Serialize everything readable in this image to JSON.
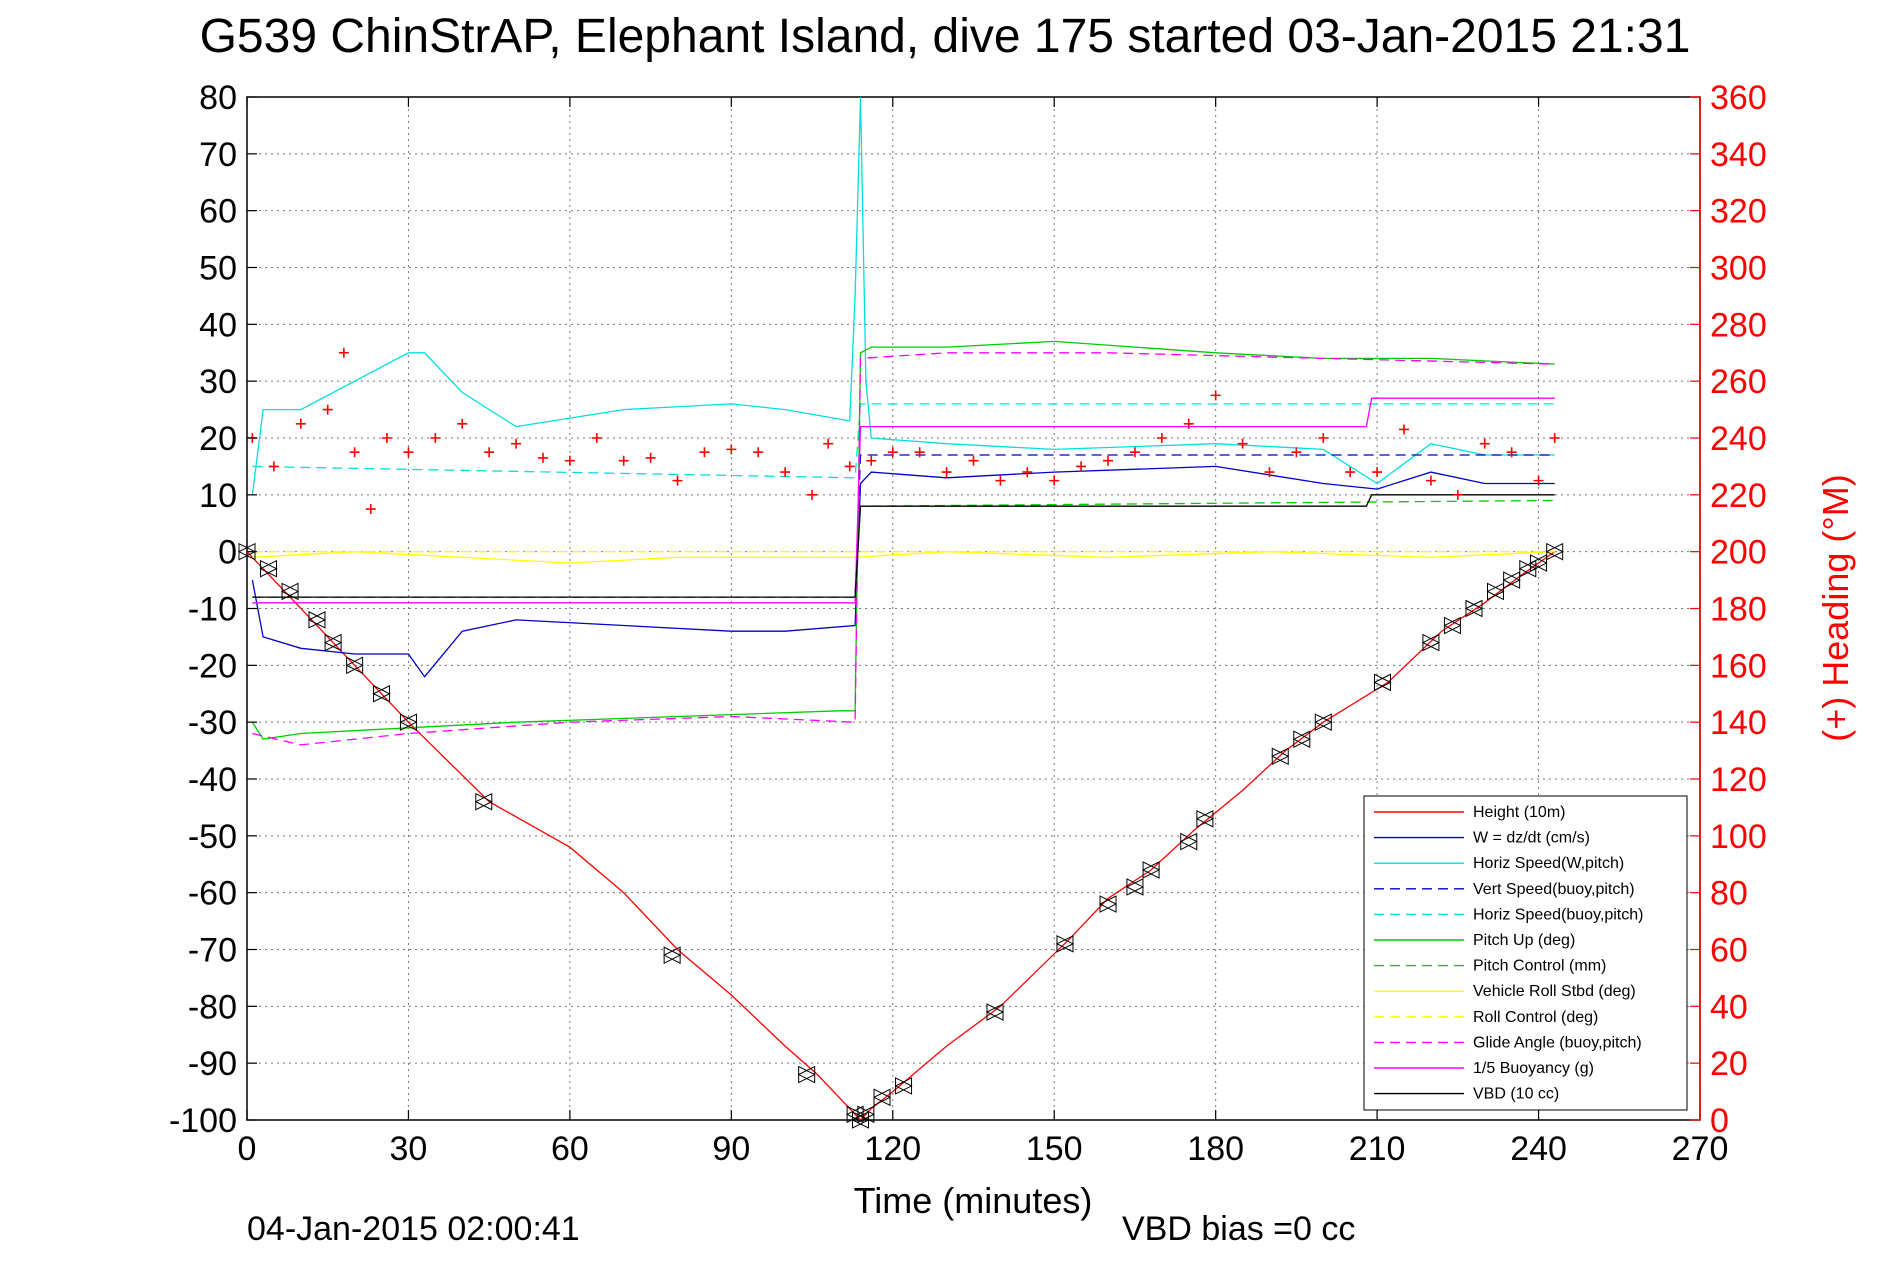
{
  "chart_data": {
    "type": "line",
    "title": "G539 ChinStrAP, Elephant Island, dive 175 started 03-Jan-2015 21:31",
    "xlabel": "Time (minutes)",
    "ylabel_right": "(+) Heading (°M)",
    "xlim": [
      0,
      270
    ],
    "ylim": [
      -100,
      80
    ],
    "ylim_right": [
      0,
      360
    ],
    "x_ticks": [
      "0",
      "30",
      "60",
      "90",
      "120",
      "150",
      "180",
      "210",
      "240",
      "270"
    ],
    "y_ticks": [
      "80",
      "70",
      "60",
      "50",
      "40",
      "30",
      "20",
      "10",
      "0",
      "-10",
      "-20",
      "-30",
      "-40",
      "-50",
      "-60",
      "-70",
      "-80",
      "-90",
      "-100"
    ],
    "y_ticks_right": [
      "360",
      "340",
      "320",
      "300",
      "280",
      "260",
      "240",
      "220",
      "200",
      "180",
      "160",
      "140",
      "120",
      "100",
      "80",
      "60",
      "40",
      "20",
      "0"
    ],
    "grid": true,
    "legend_position": "bottom-right",
    "footer_left": "04-Jan-2015 02:00:41",
    "footer_right": "VBD bias =0 cc",
    "series": [
      {
        "name": "Height (10m)",
        "color": "#ff0000",
        "style": "solid",
        "x": [
          0,
          3,
          8,
          15,
          22,
          30,
          45,
          60,
          70,
          80,
          90,
          100,
          106,
          110,
          114,
          116,
          120,
          130,
          140,
          153,
          160,
          168,
          176,
          185,
          193,
          200,
          212,
          222,
          230,
          237,
          243
        ],
        "y": [
          0,
          -3,
          -8,
          -15,
          -22,
          -30,
          -44,
          -52,
          -60,
          -70,
          -78,
          -87,
          -92,
          -96,
          -100,
          -98,
          -95,
          -87,
          -80,
          -68,
          -61,
          -56,
          -49,
          -42,
          -35,
          -30,
          -23,
          -14,
          -9,
          -4,
          0
        ]
      },
      {
        "name": "W = dz/dt (cm/s)",
        "color": "#0000cc",
        "style": "solid",
        "x": [
          1,
          3,
          10,
          20,
          30,
          33,
          40,
          50,
          70,
          90,
          100,
          113,
          114,
          116,
          130,
          150,
          180,
          200,
          210,
          220,
          230,
          243
        ],
        "y": [
          -5,
          -15,
          -17,
          -18,
          -18,
          -22,
          -14,
          -12,
          -13,
          -14,
          -14,
          -13,
          12,
          14,
          13,
          14,
          15,
          12,
          11,
          14,
          12,
          12
        ]
      },
      {
        "name": "Horiz Speed(W,pitch)",
        "color": "#00e0e0",
        "style": "solid",
        "x": [
          1,
          3,
          10,
          20,
          30,
          33,
          40,
          50,
          70,
          90,
          100,
          112,
          113,
          114,
          115,
          116,
          130,
          150,
          180,
          200,
          210,
          220,
          230,
          243
        ],
        "y": [
          10,
          25,
          25,
          30,
          35,
          35,
          28,
          22,
          25,
          26,
          25,
          23,
          45,
          80,
          30,
          20,
          19,
          18,
          19,
          18,
          12,
          19,
          17,
          17
        ]
      },
      {
        "name": "Vert Speed(buoy,pitch)",
        "color": "#0000cc",
        "style": "dashed",
        "x": [
          1,
          113,
          114,
          243
        ],
        "y": [
          -8,
          -8,
          17,
          17
        ]
      },
      {
        "name": "Horiz Speed(buoy,pitch)",
        "color": "#00e0e0",
        "style": "dashed",
        "x": [
          1,
          113,
          114,
          243
        ],
        "y": [
          15,
          13,
          26,
          26
        ]
      },
      {
        "name": "Pitch Up (deg)",
        "color": "#00cc00",
        "style": "solid",
        "x": [
          1,
          3,
          10,
          30,
          50,
          80,
          110,
          113,
          114,
          116,
          130,
          150,
          180,
          200,
          220,
          243
        ],
        "y": [
          -30,
          -33,
          -32,
          -31,
          -30,
          -29,
          -28,
          -28,
          35,
          36,
          36,
          37,
          35,
          34,
          34,
          33
        ]
      },
      {
        "name": "Pitch Control (mm)",
        "color": "#00cc00",
        "style": "dashed",
        "x": [
          1,
          113,
          114,
          243
        ],
        "y": [
          -8,
          -8,
          8,
          9
        ]
      },
      {
        "name": "Vehicle Roll Stbd (deg)",
        "color": "#ffff00",
        "style": "solid",
        "x": [
          1,
          20,
          40,
          60,
          80,
          100,
          113,
          130,
          160,
          190,
          220,
          243
        ],
        "y": [
          -1,
          0,
          -1,
          -2,
          -1,
          -1,
          -1,
          0,
          -1,
          0,
          -1,
          0
        ]
      },
      {
        "name": "Roll Control (deg)",
        "color": "#ffff00",
        "style": "dashed",
        "x": [
          1,
          113,
          114,
          243
        ],
        "y": [
          0,
          0,
          0,
          0
        ]
      },
      {
        "name": "Glide Angle (buoy,pitch)",
        "color": "#ff00ff",
        "style": "dashed",
        "x": [
          1,
          10,
          30,
          60,
          90,
          113,
          114,
          130,
          160,
          200,
          243
        ],
        "y": [
          -32,
          -34,
          -32,
          -30,
          -29,
          -30,
          34,
          35,
          35,
          34,
          33
        ]
      },
      {
        "name": "1/5 Buoyancy (g)",
        "color": "#ff00ff",
        "style": "solid",
        "x": [
          1,
          113,
          114,
          208,
          209,
          243
        ],
        "y": [
          -9,
          -9,
          22,
          22,
          27,
          27
        ]
      },
      {
        "name": "VBD (10 cc)",
        "color": "#000000",
        "style": "solid",
        "x": [
          1,
          113,
          114,
          208,
          209,
          243
        ],
        "y": [
          -8,
          -8,
          8,
          8,
          10,
          10
        ]
      }
    ],
    "heading_points": {
      "name": "(+) Heading (°M)",
      "color": "#ff0000",
      "x": [
        1,
        5,
        10,
        15,
        18,
        20,
        23,
        26,
        30,
        35,
        40,
        45,
        50,
        55,
        60,
        65,
        70,
        75,
        80,
        85,
        90,
        95,
        100,
        105,
        108,
        112,
        116,
        120,
        125,
        130,
        135,
        140,
        145,
        150,
        155,
        160,
        165,
        170,
        175,
        180,
        185,
        190,
        195,
        200,
        205,
        210,
        215,
        220,
        225,
        230,
        235,
        240,
        243
      ],
      "y": [
        240,
        230,
        245,
        250,
        270,
        235,
        215,
        240,
        235,
        240,
        245,
        235,
        238,
        233,
        232,
        240,
        232,
        233,
        225,
        235,
        236,
        235,
        228,
        220,
        238,
        230,
        232,
        235,
        235,
        228,
        232,
        225,
        228,
        225,
        230,
        232,
        235,
        240,
        245,
        255,
        238,
        228,
        235,
        240,
        228,
        228,
        243,
        225,
        220,
        238,
        235,
        225,
        240
      ]
    },
    "markers": {
      "x": [
        0,
        4,
        8,
        13,
        16,
        20,
        25,
        30,
        44,
        79,
        104,
        113,
        114,
        115,
        118,
        122,
        139,
        152,
        160,
        165,
        168,
        175,
        178,
        192,
        196,
        200,
        211,
        220,
        224,
        228,
        232,
        235,
        238,
        240,
        243
      ],
      "y": [
        0,
        -3,
        -7,
        -12,
        -16,
        -20,
        -25,
        -30,
        -44,
        -71,
        -92,
        -99,
        -100,
        -99,
        -96,
        -94,
        -81,
        -69,
        -62,
        -59,
        -56,
        -51,
        -47,
        -36,
        -33,
        -30,
        -23,
        -16,
        -13,
        -10,
        -7,
        -5,
        -3,
        -2,
        0
      ]
    }
  }
}
